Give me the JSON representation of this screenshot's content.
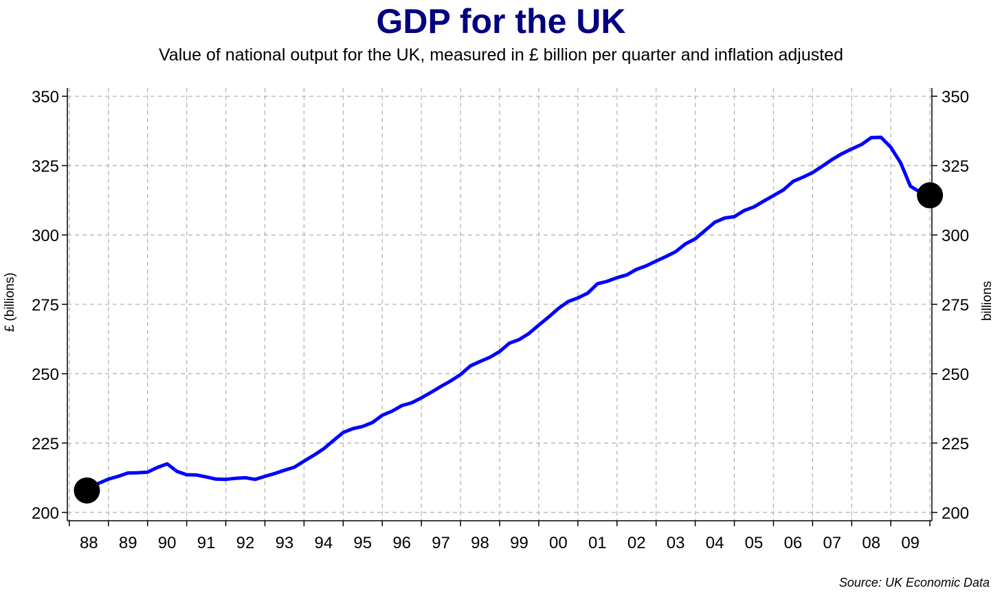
{
  "chart_data": {
    "type": "line",
    "title": "GDP for the UK",
    "subtitle": "Value of national output for the UK, measured in £ billion per quarter and inflation adjusted",
    "ylabel_left": "£ (billions)",
    "ylabel_right": "billions",
    "source": "Source: UK Economic Data",
    "ylim": [
      197,
      353
    ],
    "yticks": [
      200,
      225,
      250,
      275,
      300,
      325,
      350
    ],
    "ytick_labels": [
      "200",
      "225",
      "250",
      "275",
      "300",
      "325",
      "350"
    ],
    "xlim": [
      1987.95,
      2010.05
    ],
    "year_labels": [
      "88",
      "89",
      "90",
      "91",
      "92",
      "93",
      "94",
      "95",
      "96",
      "97",
      "98",
      "99",
      "00",
      "01",
      "02",
      "03",
      "04",
      "05",
      "06",
      "07",
      "08",
      "09"
    ],
    "grid": true,
    "series": [
      {
        "name": "GDP",
        "color": "#0000ff",
        "points": [
          [
            1988.5,
            208.0
          ],
          [
            1988.75,
            210.5
          ],
          [
            1989.0,
            212.0
          ],
          [
            1989.25,
            213.0
          ],
          [
            1989.5,
            214.2
          ],
          [
            1989.75,
            214.3
          ],
          [
            1990.0,
            214.5
          ],
          [
            1990.25,
            216.2
          ],
          [
            1990.5,
            217.5
          ],
          [
            1990.75,
            214.8
          ],
          [
            1991.0,
            213.6
          ],
          [
            1991.25,
            213.5
          ],
          [
            1991.5,
            212.8
          ],
          [
            1991.75,
            212.0
          ],
          [
            1992.0,
            211.9
          ],
          [
            1992.25,
            212.3
          ],
          [
            1992.5,
            212.5
          ],
          [
            1992.75,
            211.9
          ],
          [
            1993.0,
            213.0
          ],
          [
            1993.25,
            214.0
          ],
          [
            1993.5,
            215.2
          ],
          [
            1993.75,
            216.3
          ],
          [
            1994.0,
            218.5
          ],
          [
            1994.25,
            220.6
          ],
          [
            1994.5,
            222.9
          ],
          [
            1994.75,
            225.9
          ],
          [
            1995.0,
            228.8
          ],
          [
            1995.25,
            230.2
          ],
          [
            1995.5,
            231.0
          ],
          [
            1995.75,
            232.4
          ],
          [
            1996.0,
            235.0
          ],
          [
            1996.25,
            236.5
          ],
          [
            1996.5,
            238.5
          ],
          [
            1996.75,
            239.5
          ],
          [
            1997.0,
            241.3
          ],
          [
            1997.25,
            243.3
          ],
          [
            1997.5,
            245.4
          ],
          [
            1997.75,
            247.4
          ],
          [
            1998.0,
            249.7
          ],
          [
            1998.25,
            252.8
          ],
          [
            1998.5,
            254.4
          ],
          [
            1998.75,
            255.9
          ],
          [
            1999.0,
            258.0
          ],
          [
            1999.25,
            261.0
          ],
          [
            1999.5,
            262.3
          ],
          [
            1999.75,
            264.5
          ],
          [
            2000.0,
            267.5
          ],
          [
            2000.25,
            270.4
          ],
          [
            2000.5,
            273.5
          ],
          [
            2000.75,
            276.0
          ],
          [
            2001.0,
            277.3
          ],
          [
            2001.25,
            279.0
          ],
          [
            2001.5,
            282.4
          ],
          [
            2001.75,
            283.3
          ],
          [
            2002.0,
            284.6
          ],
          [
            2002.25,
            285.6
          ],
          [
            2002.5,
            287.6
          ],
          [
            2002.75,
            288.9
          ],
          [
            2003.0,
            290.6
          ],
          [
            2003.25,
            292.2
          ],
          [
            2003.5,
            294.0
          ],
          [
            2003.75,
            296.8
          ],
          [
            2004.0,
            298.6
          ],
          [
            2004.25,
            301.6
          ],
          [
            2004.5,
            304.6
          ],
          [
            2004.75,
            306.1
          ],
          [
            2005.0,
            306.6
          ],
          [
            2005.25,
            308.8
          ],
          [
            2005.5,
            310.1
          ],
          [
            2005.75,
            312.2
          ],
          [
            2006.0,
            314.2
          ],
          [
            2006.25,
            316.2
          ],
          [
            2006.5,
            319.3
          ],
          [
            2006.75,
            320.8
          ],
          [
            2007.0,
            322.5
          ],
          [
            2007.25,
            324.8
          ],
          [
            2007.5,
            327.2
          ],
          [
            2007.75,
            329.3
          ],
          [
            2008.0,
            331.0
          ],
          [
            2008.25,
            332.6
          ],
          [
            2008.5,
            335.1
          ],
          [
            2008.75,
            335.2
          ],
          [
            2009.0,
            331.6
          ],
          [
            2009.25,
            326.0
          ],
          [
            2009.5,
            317.6
          ],
          [
            2009.75,
            315.4
          ],
          [
            2009.9,
            314.5
          ]
        ]
      }
    ],
    "markers": [
      {
        "label": "start",
        "x": 1988.45,
        "y": 207.9
      },
      {
        "label": "end",
        "x": 2010.0,
        "y": 314.3
      }
    ]
  }
}
